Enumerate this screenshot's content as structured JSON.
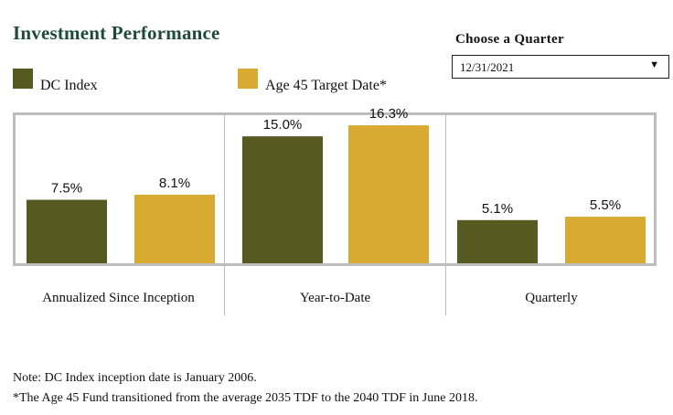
{
  "title": "Investment Performance",
  "legend": [
    {
      "label": "DC Index",
      "color": "#565a21"
    },
    {
      "label": "Age 45 Target Date*",
      "color": "#d8aa32"
    }
  ],
  "selector": {
    "label": "Choose a Quarter",
    "value": "12/31/2021",
    "caret": "▼"
  },
  "notes": {
    "line1": "Note: DC Index inception date is January 2006.",
    "line2": "*The Age 45 Fund transitioned from the average 2035 TDF to the 2040 TDF in June 2018."
  },
  "chart_data": {
    "type": "bar",
    "categories": [
      "Annualized Since Inception",
      "Year-to-Date",
      "Quarterly"
    ],
    "series": [
      {
        "name": "DC Index",
        "values": [
          7.5,
          15.0,
          5.1
        ],
        "labels": [
          "7.5%",
          "15.0%",
          "5.1%"
        ],
        "color": "#565a21"
      },
      {
        "name": "Age 45 Target Date*",
        "values": [
          8.1,
          16.3,
          5.5
        ],
        "labels": [
          "8.1%",
          "16.3%",
          "5.5%"
        ],
        "color": "#d8aa32"
      }
    ],
    "ylim": [
      0,
      17.5
    ],
    "grid": false,
    "legend_position": "top-left"
  }
}
